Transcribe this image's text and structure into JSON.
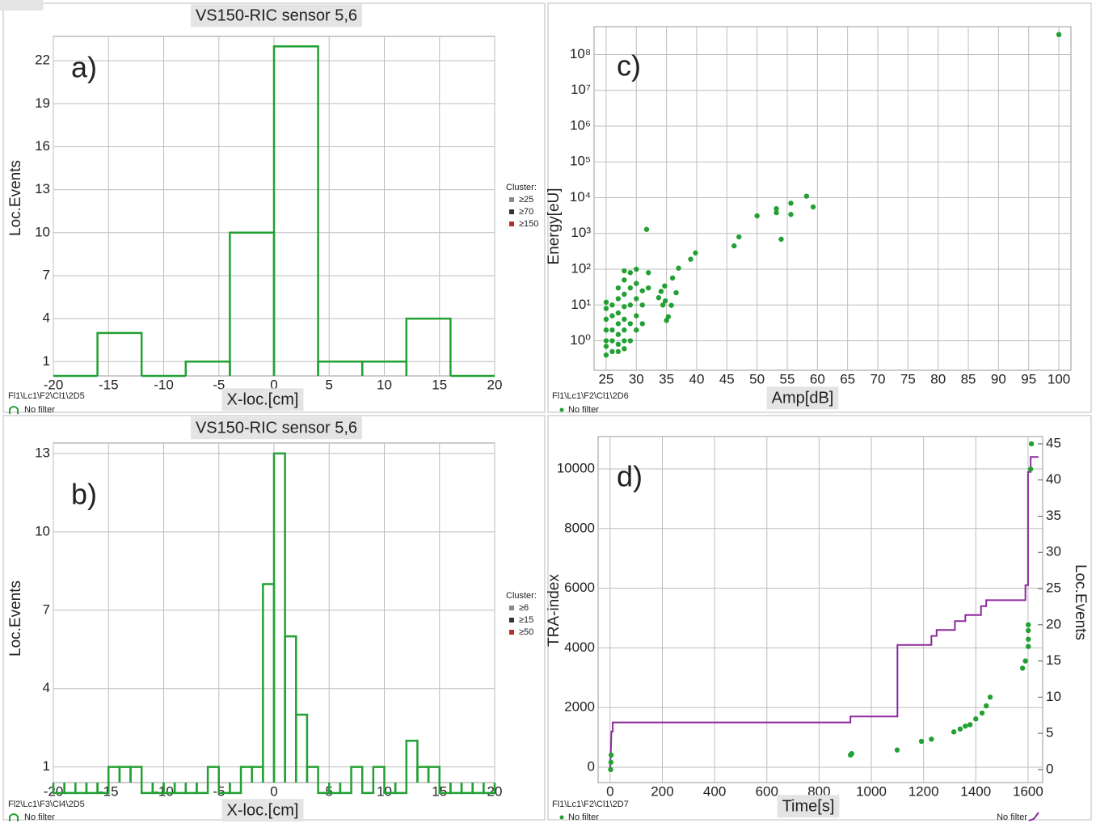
{
  "chart_data": [
    {
      "type": "histogram",
      "title": "VS150-RIC sensor 5,6",
      "panel_label": "a)",
      "x_label": "X-loc.[cm]",
      "y_label": "Loc.Events",
      "footer": "Fl1\\Lc1\\F2\\Cl1\\2D5",
      "bins": [
        -20,
        -16,
        -12,
        -8,
        -4,
        0,
        4,
        8,
        12,
        16,
        20
      ],
      "series": [
        {
          "name": "No filter",
          "color": "#22a033",
          "values": [
            0,
            3,
            0,
            1,
            10,
            23,
            1,
            1,
            4,
            0
          ]
        }
      ],
      "xlim": [
        -20,
        20
      ],
      "ylim": [
        0,
        23.7
      ],
      "xticks": [
        -20,
        -15,
        -10,
        -5,
        0,
        5,
        10,
        15,
        20
      ],
      "yticks": [
        1,
        4,
        7,
        10,
        13,
        16,
        19,
        22
      ],
      "grid": true,
      "cluster_legend": {
        "title": "Cluster:",
        "entries": [
          {
            "label": "≥25",
            "color": "#888888"
          },
          {
            "label": "≥70",
            "color": "#333333"
          },
          {
            "label": "≥150",
            "color": "#b03030"
          }
        ]
      }
    },
    {
      "type": "scatter",
      "panel_label": "c)",
      "x_label": "Amp[dB]",
      "y_label": "Energy[eU]",
      "footer": "Fl1\\Lc1\\F2\\Cl1\\2D6",
      "series": [
        {
          "name": "No filter",
          "color": "#22a033",
          "x": [
            25,
            25,
            25,
            25,
            25,
            25,
            25,
            26,
            26,
            26,
            26,
            26,
            27,
            27,
            27,
            27,
            27,
            27,
            27,
            28,
            28,
            28,
            28,
            28,
            28,
            28,
            28,
            29,
            29,
            29,
            29,
            29,
            30,
            30,
            30,
            30,
            30,
            31,
            31,
            31,
            32,
            32,
            31.7,
            33.7,
            34.1,
            34.4,
            34.7,
            34.8,
            35,
            35.3,
            35.8,
            36,
            36.6,
            37,
            39,
            39.8,
            46.2,
            47,
            50,
            53.2,
            53.2,
            54,
            55.6,
            55.6,
            58.2,
            59.3,
            100
          ],
          "values": [
            0.4,
            0.7,
            1,
            2,
            4,
            8,
            12,
            0.5,
            1,
            2,
            5,
            10,
            0.5,
            0.8,
            1.5,
            3,
            6,
            15,
            30,
            0.6,
            1,
            2,
            4,
            9,
            20,
            50,
            90,
            1,
            3,
            10,
            30,
            80,
            2,
            5,
            15,
            40,
            100,
            3,
            10,
            25,
            30,
            80,
            1300,
            16,
            24,
            10,
            34,
            13,
            3.7,
            4.7,
            9.8,
            57,
            22,
            107,
            190,
            285,
            450,
            800,
            3100,
            4900,
            3800,
            690,
            7000,
            3400,
            11000,
            5500,
            360000000
          ]
        }
      ],
      "xlim": [
        23,
        102
      ],
      "ylim": [
        0.15,
        600000000
      ],
      "ylog": true,
      "xticks": [
        25,
        30,
        35,
        40,
        45,
        50,
        55,
        60,
        65,
        70,
        75,
        80,
        85,
        90,
        95,
        100
      ],
      "yticks": [
        {
          "value": 1,
          "label": "10⁰"
        },
        {
          "value": 10,
          "label": "10¹"
        },
        {
          "value": 100,
          "label": "10²"
        },
        {
          "value": 1000,
          "label": "10³"
        },
        {
          "value": 10000,
          "label": "10⁴"
        },
        {
          "value": 100000,
          "label": "10⁵"
        },
        {
          "value": 1000000,
          "label": "10⁶"
        },
        {
          "value": 10000000,
          "label": "10⁷"
        },
        {
          "value": 100000000,
          "label": "10⁸"
        }
      ],
      "grid": true
    },
    {
      "type": "histogram",
      "title": "VS150-RIC sensor 5,6",
      "panel_label": "b)",
      "x_label": "X-loc.[cm]",
      "y_label": "Loc.Events",
      "footer": "Fl2\\Lc1\\F3\\Cl4\\2D5",
      "bins": [
        -20,
        -19,
        -18,
        -17,
        -16,
        -15,
        -14,
        -13,
        -12,
        -11,
        -10,
        -9,
        -8,
        -7,
        -6,
        -5,
        -4,
        -3,
        -2,
        -1,
        0,
        1,
        2,
        3,
        4,
        5,
        6,
        7,
        8,
        9,
        10,
        11,
        12,
        13,
        14,
        15,
        16,
        17,
        18,
        19,
        20
      ],
      "series": [
        {
          "name": "No filter",
          "color": "#22a033",
          "values": [
            0,
            0,
            0,
            0,
            0,
            1,
            1,
            1,
            0,
            0,
            0,
            0,
            0,
            0,
            1,
            0,
            0,
            1,
            1,
            8,
            13,
            6,
            3,
            1,
            0,
            0,
            0,
            1,
            0,
            1,
            0,
            0,
            2,
            1,
            1,
            0,
            0,
            0,
            0,
            0
          ]
        }
      ],
      "xlim": [
        -20,
        20
      ],
      "ylim": [
        0.4,
        13.4
      ],
      "xticks": [
        -20,
        -15,
        -10,
        -5,
        0,
        5,
        10,
        15,
        20
      ],
      "yticks": [
        1,
        4,
        7,
        10,
        13
      ],
      "grid": true,
      "cluster_legend": {
        "title": "Cluster:",
        "entries": [
          {
            "label": "≥6",
            "color": "#888888"
          },
          {
            "label": "≥15",
            "color": "#333333"
          },
          {
            "label": "≥50",
            "color": "#b03030"
          }
        ]
      }
    },
    {
      "type": "line",
      "panel_label": "d)",
      "x_label": "Time[s]",
      "y_label": "TRA-index",
      "y2_label": "Loc.Events",
      "footer": "Fl1\\Lc1\\F2\\Cl1\\2D7",
      "series": [
        {
          "name": "No filter",
          "color": "#8b2a9b",
          "style": "line",
          "x": [
            0,
            3,
            5,
            10,
            10,
            920,
            920,
            1100,
            1100,
            1230,
            1230,
            1250,
            1250,
            1320,
            1320,
            1360,
            1360,
            1420,
            1420,
            1440,
            1440,
            1590,
            1590,
            1600,
            1600,
            1610,
            1610,
            1640
          ],
          "values": [
            0,
            600,
            1200,
            1200,
            1500,
            1500,
            1700,
            1700,
            4100,
            4100,
            4400,
            4400,
            4600,
            4600,
            4900,
            4900,
            5100,
            5100,
            5400,
            5400,
            5600,
            5600,
            6100,
            6100,
            9900,
            9900,
            10400,
            10400
          ]
        },
        {
          "name": "No filter",
          "color": "#22a033",
          "style": "points",
          "axis": "y2",
          "x": [
            2,
            3,
            4,
            920,
            925,
            1099,
            1192,
            1230,
            1316,
            1340,
            1360,
            1378,
            1400,
            1424,
            1440,
            1455,
            1579,
            1590,
            1601,
            1601,
            1601,
            1601,
            1610,
            1613
          ],
          "values": [
            0,
            1,
            2,
            2,
            2.2,
            2.7,
            3.9,
            4.2,
            5.2,
            5.6,
            6,
            6.2,
            7,
            7.8,
            8.8,
            10,
            14,
            15,
            17,
            18,
            19.2,
            20,
            41.5,
            45
          ]
        }
      ],
      "xlim": [
        -46,
        1656
      ],
      "ylim": [
        -515,
        11084
      ],
      "y2lim": [
        -1.8,
        46
      ],
      "xticks": [
        0,
        200,
        400,
        600,
        800,
        1000,
        1200,
        1400,
        1600
      ],
      "yticks": [
        0,
        2000,
        4000,
        6000,
        8000,
        10000
      ],
      "y2ticks": [
        0,
        5,
        10,
        15,
        20,
        25,
        30,
        35,
        40,
        45
      ],
      "grid": true
    }
  ]
}
